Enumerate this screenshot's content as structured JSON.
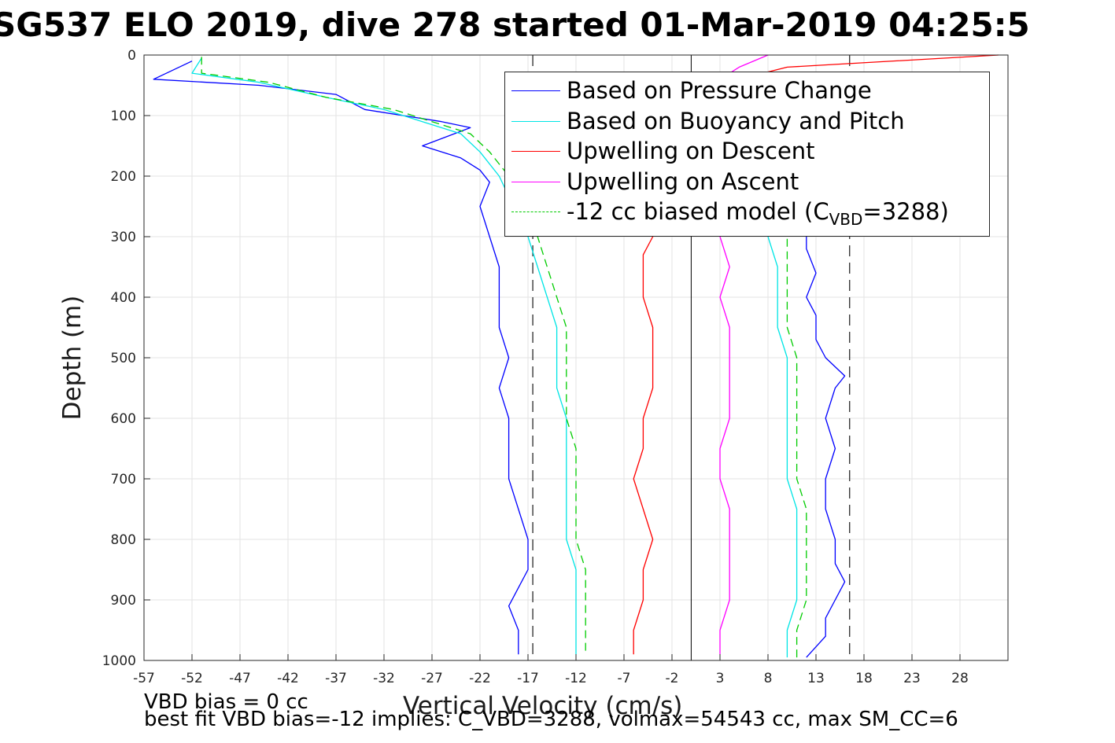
{
  "title": "SG537 ELO 2019, dive 278 started 01-Mar-2019 04:25:5",
  "footer": {
    "line1": "VBD bias = 0 cc",
    "line2": "best fit VBD bias=-12 implies: C_VBD=3288, volmax=54543 cc, max SM_CC=6"
  },
  "chart_data": {
    "type": "line",
    "xlabel": "Vertical Velocity (cm/s)",
    "ylabel": "Depth (m)",
    "xlim": [
      -57,
      33
    ],
    "ylim": [
      1000,
      0
    ],
    "y_reversed": true,
    "grid": true,
    "legend_position": "top-right",
    "xticks": [
      -57,
      -52,
      -47,
      -42,
      -37,
      -32,
      -27,
      -22,
      -17,
      -12,
      -7,
      -2,
      3,
      8,
      13,
      18,
      23,
      28
    ],
    "yticks": [
      0,
      100,
      200,
      300,
      400,
      500,
      600,
      700,
      800,
      900,
      1000
    ],
    "reference_lines": {
      "dashed_x": [
        -16.5,
        16.5
      ],
      "solid_x": [
        0
      ]
    },
    "series": [
      {
        "name": "Based on Pressure Change",
        "color": "#0000ff",
        "dash": false,
        "descent": [
          [
            -52,
            10
          ],
          [
            -56,
            40
          ],
          [
            -45,
            50
          ],
          [
            -37,
            65
          ],
          [
            -34,
            90
          ],
          [
            -30,
            100
          ],
          [
            -26,
            110
          ],
          [
            -23,
            120
          ],
          [
            -28,
            150
          ],
          [
            -24,
            170
          ],
          [
            -22,
            190
          ],
          [
            -21,
            210
          ],
          [
            -22,
            250
          ],
          [
            -21,
            300
          ],
          [
            -20,
            350
          ],
          [
            -20,
            400
          ],
          [
            -20,
            450
          ],
          [
            -19,
            500
          ],
          [
            -20,
            550
          ],
          [
            -19,
            600
          ],
          [
            -19,
            650
          ],
          [
            -19,
            700
          ],
          [
            -18,
            750
          ],
          [
            -17,
            800
          ],
          [
            -17,
            850
          ],
          [
            -18,
            880
          ],
          [
            -19,
            910
          ],
          [
            -18,
            950
          ],
          [
            -18,
            990
          ]
        ],
        "ascent": [
          [
            12,
            995
          ],
          [
            14,
            960
          ],
          [
            14,
            930
          ],
          [
            15,
            900
          ],
          [
            16,
            870
          ],
          [
            15,
            840
          ],
          [
            15,
            800
          ],
          [
            14,
            750
          ],
          [
            14,
            700
          ],
          [
            15,
            650
          ],
          [
            14,
            600
          ],
          [
            15,
            550
          ],
          [
            16,
            530
          ],
          [
            14,
            500
          ],
          [
            13,
            470
          ],
          [
            13,
            430
          ],
          [
            12,
            400
          ],
          [
            13,
            360
          ],
          [
            12,
            320
          ],
          [
            12,
            300
          ]
        ]
      },
      {
        "name": "Based on Buoyancy and Pitch",
        "color": "#00e5e5",
        "dash": false,
        "descent": [
          [
            -51,
            5
          ],
          [
            -52,
            30
          ],
          [
            -45,
            45
          ],
          [
            -38,
            70
          ],
          [
            -32,
            90
          ],
          [
            -28,
            110
          ],
          [
            -24,
            130
          ],
          [
            -22,
            160
          ],
          [
            -20,
            200
          ],
          [
            -17,
            300
          ],
          [
            -16,
            350
          ],
          [
            -15,
            400
          ],
          [
            -14,
            450
          ],
          [
            -14,
            500
          ],
          [
            -14,
            550
          ],
          [
            -13,
            600
          ],
          [
            -13,
            650
          ],
          [
            -13,
            700
          ],
          [
            -13,
            750
          ],
          [
            -13,
            800
          ],
          [
            -12,
            850
          ],
          [
            -12,
            900
          ],
          [
            -12,
            930
          ],
          [
            -12,
            990
          ]
        ],
        "ascent": [
          [
            10,
            995
          ],
          [
            10,
            950
          ],
          [
            11,
            900
          ],
          [
            11,
            850
          ],
          [
            11,
            800
          ],
          [
            11,
            750
          ],
          [
            10,
            700
          ],
          [
            10,
            650
          ],
          [
            10,
            600
          ],
          [
            10,
            550
          ],
          [
            10,
            500
          ],
          [
            9,
            450
          ],
          [
            9,
            400
          ],
          [
            9,
            350
          ],
          [
            8,
            300
          ]
        ]
      },
      {
        "name": "Upwelling on Descent",
        "color": "#ff0000",
        "dash": false,
        "descent": [
          [
            32,
            0
          ],
          [
            10,
            20
          ],
          [
            5,
            40
          ],
          [
            2,
            60
          ],
          [
            0,
            80
          ],
          [
            -4,
            300
          ],
          [
            -5,
            330
          ],
          [
            -5,
            360
          ],
          [
            -5,
            400
          ],
          [
            -4,
            450
          ],
          [
            -4,
            500
          ],
          [
            -4,
            550
          ],
          [
            -5,
            600
          ],
          [
            -5,
            650
          ],
          [
            -6,
            700
          ],
          [
            -5,
            750
          ],
          [
            -4,
            800
          ],
          [
            -5,
            850
          ],
          [
            -5,
            900
          ],
          [
            -6,
            950
          ],
          [
            -6,
            990
          ]
        ]
      },
      {
        "name": "Upwelling on Ascent",
        "color": "#ff00ff",
        "dash": false,
        "ascent": [
          [
            8,
            0
          ],
          [
            5,
            20
          ],
          [
            3,
            40
          ],
          [
            3,
            300
          ],
          [
            4,
            350
          ],
          [
            3,
            400
          ],
          [
            4,
            450
          ],
          [
            4,
            500
          ],
          [
            4,
            550
          ],
          [
            4,
            600
          ],
          [
            3,
            650
          ],
          [
            3,
            700
          ],
          [
            4,
            750
          ],
          [
            4,
            800
          ],
          [
            4,
            850
          ],
          [
            4,
            900
          ],
          [
            3,
            950
          ],
          [
            3,
            990
          ]
        ]
      },
      {
        "name": "-12 cc biased model (C_VBD=3288)",
        "color": "#00cc00",
        "dash": true,
        "descent": [
          [
            -51,
            3
          ],
          [
            -51,
            30
          ],
          [
            -44,
            45
          ],
          [
            -38,
            70
          ],
          [
            -31,
            90
          ],
          [
            -27,
            110
          ],
          [
            -23,
            130
          ],
          [
            -21,
            160
          ],
          [
            -19,
            200
          ],
          [
            -16,
            300
          ],
          [
            -15,
            350
          ],
          [
            -14,
            400
          ],
          [
            -13,
            450
          ],
          [
            -13,
            500
          ],
          [
            -13,
            550
          ],
          [
            -13,
            600
          ],
          [
            -12,
            650
          ],
          [
            -12,
            700
          ],
          [
            -12,
            750
          ],
          [
            -12,
            800
          ],
          [
            -11,
            850
          ],
          [
            -11,
            900
          ],
          [
            -11,
            950
          ],
          [
            -11,
            990
          ]
        ],
        "ascent": [
          [
            11,
            995
          ],
          [
            11,
            950
          ],
          [
            12,
            900
          ],
          [
            12,
            850
          ],
          [
            12,
            800
          ],
          [
            12,
            750
          ],
          [
            11,
            700
          ],
          [
            11,
            650
          ],
          [
            11,
            600
          ],
          [
            11,
            550
          ],
          [
            11,
            500
          ],
          [
            10,
            450
          ],
          [
            10,
            400
          ],
          [
            10,
            350
          ],
          [
            10,
            300
          ]
        ]
      }
    ]
  },
  "legend": {
    "entries": [
      {
        "label": "Based on Pressure Change",
        "color": "#0000ff",
        "dash": false
      },
      {
        "label": "Based on Buoyancy and Pitch",
        "color": "#00e5e5",
        "dash": false
      },
      {
        "label": "Upwelling on Descent",
        "color": "#ff0000",
        "dash": false
      },
      {
        "label": "Upwelling on Ascent",
        "color": "#ff00ff",
        "dash": false
      },
      {
        "label": "-12 cc biased model (C",
        "sub": "VBD",
        "suffix": "=3288)",
        "color": "#00cc00",
        "dash": true
      }
    ]
  }
}
